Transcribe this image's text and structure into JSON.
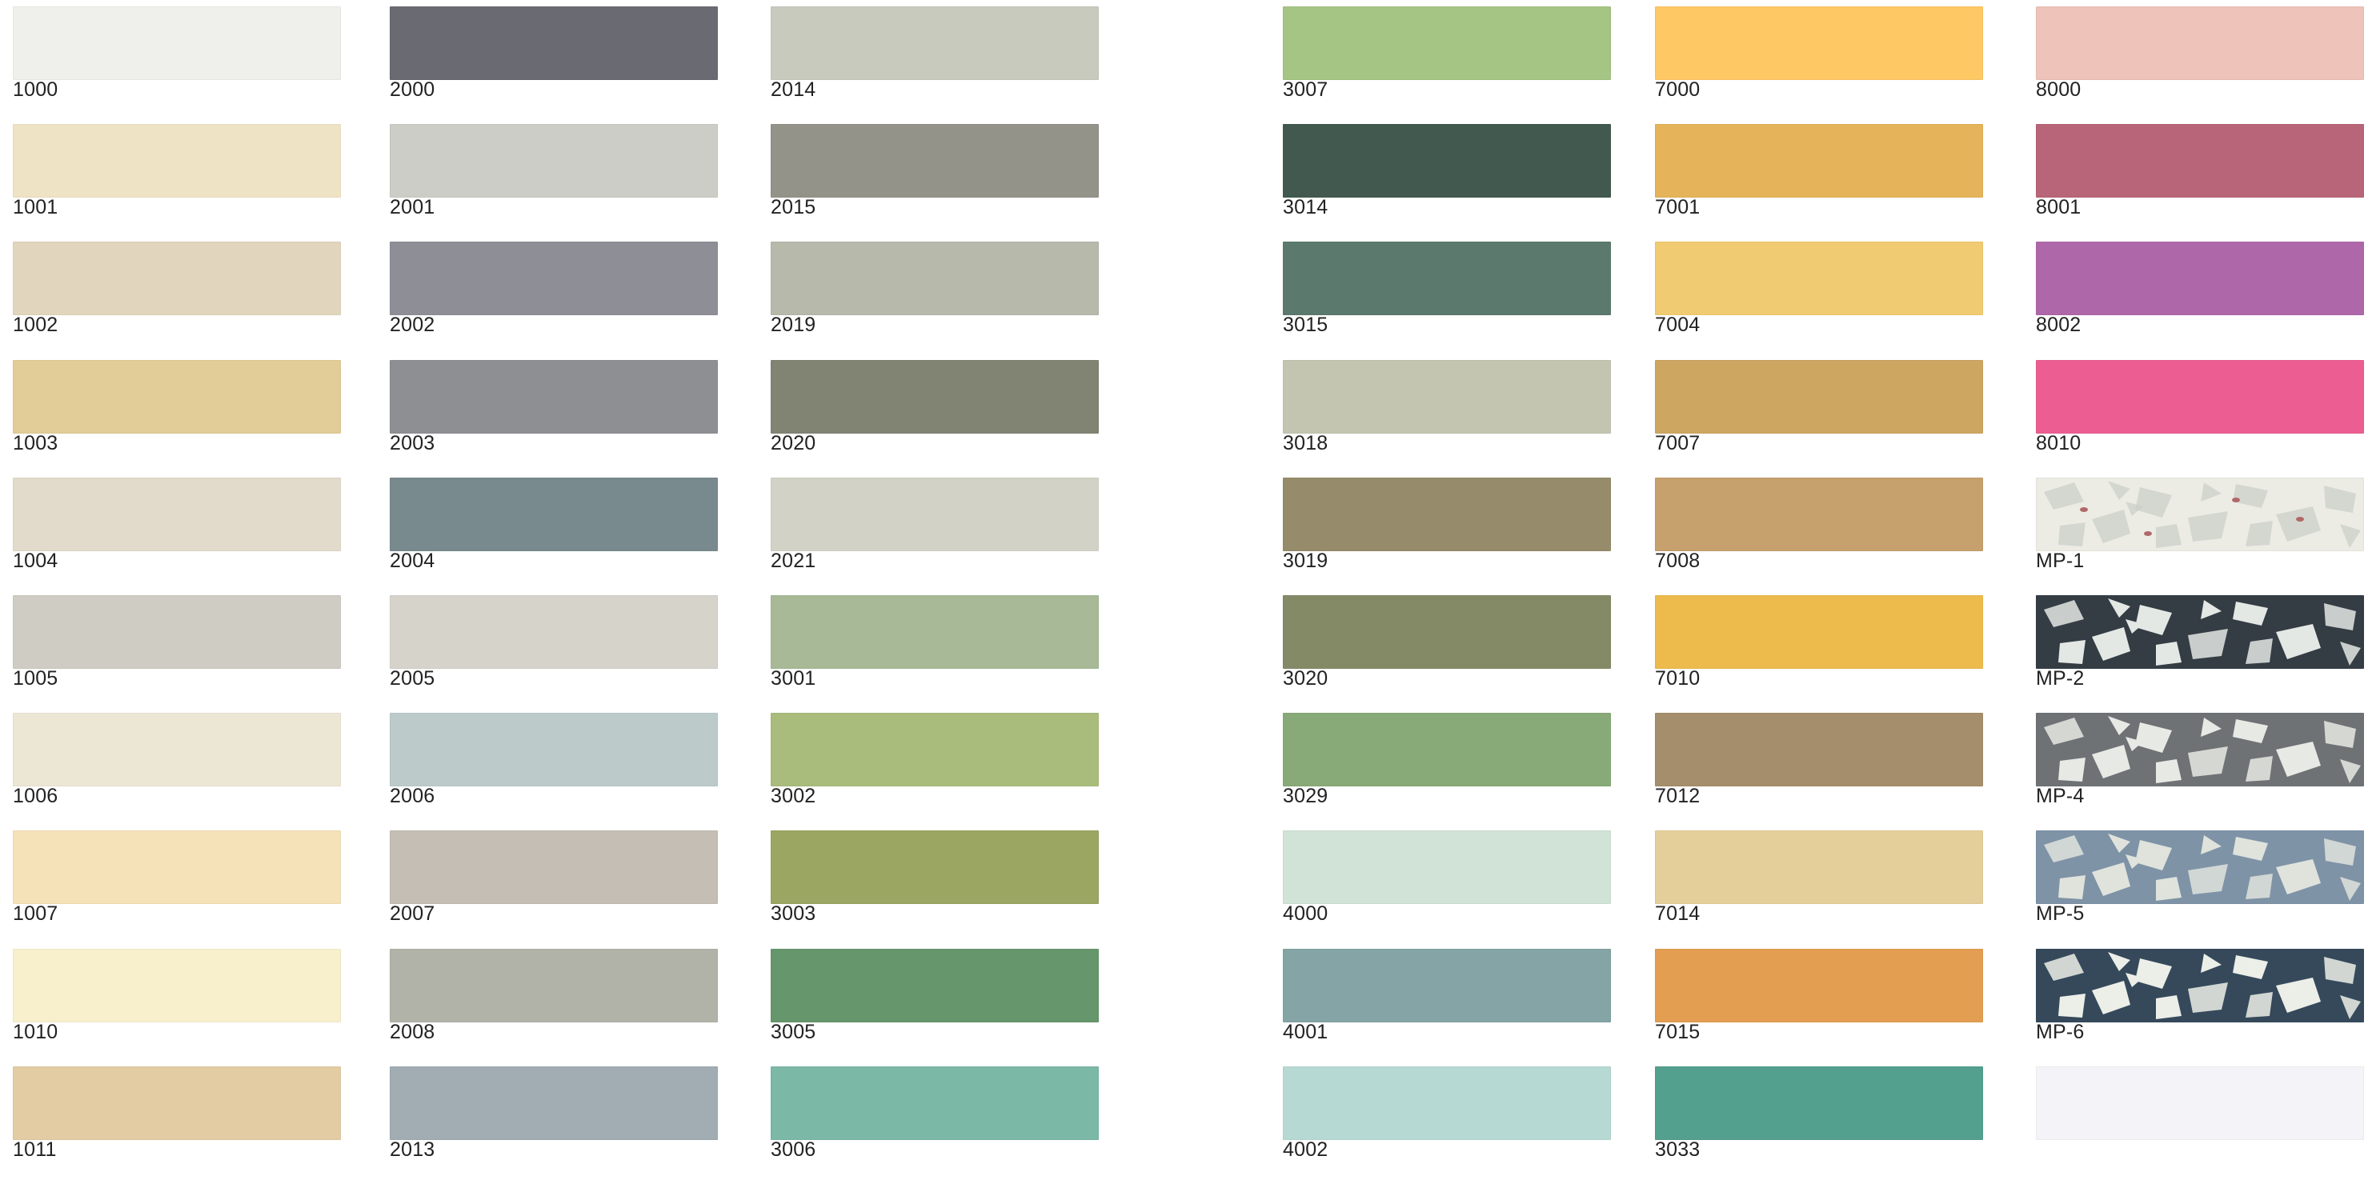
{
  "columns": [
    {
      "swatches": [
        {
          "code": "1000",
          "color": "#eff0ec"
        },
        {
          "code": "1001",
          "color": "#efe3c5"
        },
        {
          "code": "1002",
          "color": "#e1d5bd"
        },
        {
          "code": "1003",
          "color": "#e2cc98"
        },
        {
          "code": "1004",
          "color": "#e2dbcb"
        },
        {
          "code": "1005",
          "color": "#cfcdc3"
        },
        {
          "code": "1006",
          "color": "#ebe7d4"
        },
        {
          "code": "1007",
          "color": "#f6e2b9"
        },
        {
          "code": "1010",
          "color": "#f8efcc"
        },
        {
          "code": "1011",
          "color": "#e3cca4"
        }
      ]
    },
    {
      "swatches": [
        {
          "code": "2000",
          "color": "#6a6a72"
        },
        {
          "code": "2001",
          "color": "#cccdc6"
        },
        {
          "code": "2002",
          "color": "#8e8e97"
        },
        {
          "code": "2003",
          "color": "#8e8f93"
        },
        {
          "code": "2004",
          "color": "#798a8f"
        },
        {
          "code": "2005",
          "color": "#d6d3cb"
        },
        {
          "code": "2006",
          "color": "#bccaca"
        },
        {
          "code": "2007",
          "color": "#c4beb5"
        },
        {
          "code": "2008",
          "color": "#b1b3a8"
        },
        {
          "code": "2013",
          "color": "#a1adb2"
        }
      ]
    },
    {
      "swatches": [
        {
          "code": "2014",
          "color": "#c8cabd"
        },
        {
          "code": "2015",
          "color": "#939389"
        },
        {
          "code": "2019",
          "color": "#b7b9aa"
        },
        {
          "code": "2020",
          "color": "#818473"
        },
        {
          "code": "2021",
          "color": "#d2d3c6"
        },
        {
          "code": "3001",
          "color": "#a7b996"
        },
        {
          "code": "3002",
          "color": "#a9bc7c"
        },
        {
          "code": "3003",
          "color": "#9aa661"
        },
        {
          "code": "3005",
          "color": "#66966c"
        },
        {
          "code": "3006",
          "color": "#7bb8a6"
        }
      ]
    },
    {
      "swatches": [
        {
          "code": "3007",
          "color": "#a4c583"
        },
        {
          "code": "3014",
          "color": "#42594f"
        },
        {
          "code": "3015",
          "color": "#5b7a6d"
        },
        {
          "code": "3018",
          "color": "#c4c5b1"
        },
        {
          "code": "3019",
          "color": "#968c6c"
        },
        {
          "code": "3020",
          "color": "#848a66"
        },
        {
          "code": "3029",
          "color": "#88aa78"
        },
        {
          "code": "4000",
          "color": "#d1e3d6"
        },
        {
          "code": "4001",
          "color": "#85a4a6"
        },
        {
          "code": "4002",
          "color": "#b7d9d3"
        }
      ]
    },
    {
      "swatches": [
        {
          "code": "7000",
          "color": "#fec865"
        },
        {
          "code": "7001",
          "color": "#e4b35a"
        },
        {
          "code": "7004",
          "color": "#f0cb72"
        },
        {
          "code": "7007",
          "color": "#cda661"
        },
        {
          "code": "7008",
          "color": "#c6a06d"
        },
        {
          "code": "7010",
          "color": "#edbb4b"
        },
        {
          "code": "7012",
          "color": "#a58e6b"
        },
        {
          "code": "7014",
          "color": "#e4cf9b"
        },
        {
          "code": "7015",
          "color": "#e39e52"
        },
        {
          "code": "3033",
          "color": "#54a08e"
        }
      ]
    },
    {
      "swatches": [
        {
          "code": "8000",
          "color": "#eec3ba"
        },
        {
          "code": "8001",
          "color": "#b86579"
        },
        {
          "code": "8002",
          "color": "#ae68a9"
        },
        {
          "code": "8010",
          "color": "#ec5e91"
        },
        {
          "code": "MP-1",
          "color": "#ecece5",
          "chips": "#c9cfc8",
          "flecks": "#b06868"
        },
        {
          "code": "MP-2",
          "color": "#343c44",
          "chips": "#e4e8e4"
        },
        {
          "code": "MP-4",
          "color": "#6e7275",
          "chips": "#e7e9e4"
        },
        {
          "code": "MP-5",
          "color": "#7f93a7",
          "chips": "#dfe3dc"
        },
        {
          "code": "MP-6",
          "color": "#35495b",
          "chips": "#eceee8"
        },
        {
          "code": "",
          "color": "#f3f3f8"
        }
      ]
    }
  ]
}
